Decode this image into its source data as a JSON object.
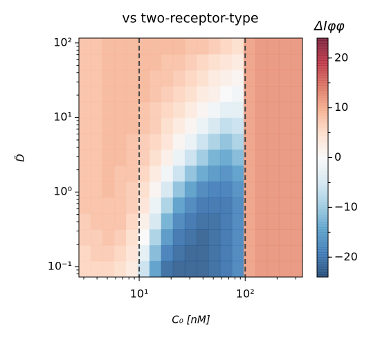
{
  "chart_data": {
    "type": "heatmap",
    "title": "vs two-receptor-type",
    "xlabel": "C₀ [nM]",
    "ylabel": "D̃",
    "xscale": "log",
    "yscale": "log",
    "xlim": [
      2.7,
      347
    ],
    "ylim": [
      0.0724,
      116
    ],
    "xticks": [
      {
        "value": 10,
        "label": "10¹"
      },
      {
        "value": 100,
        "label": "10²"
      }
    ],
    "yticks": [
      {
        "value": 0.1,
        "label": "10⁻¹"
      },
      {
        "value": 1,
        "label": "10⁰"
      },
      {
        "value": 10,
        "label": "10¹"
      },
      {
        "value": 100,
        "label": "10²"
      }
    ],
    "x_edges": [
      2.7,
      3.48,
      4.5,
      5.81,
      7.5,
      9.68,
      12.5,
      16.1,
      20.8,
      26.9,
      34.8,
      44.9,
      57.9,
      74.8,
      96.6,
      125,
      161,
      208,
      269,
      347
    ],
    "y_edges": [
      0.0724,
      0.119,
      0.194,
      0.317,
      0.519,
      0.849,
      1.39,
      2.27,
      3.72,
      6.07,
      9.93,
      16.3,
      26.5,
      43.5,
      71.1,
      116
    ],
    "z": [
      [
        6,
        6,
        6,
        5,
        3,
        -6,
        -15,
        -21,
        -22,
        -22,
        -22,
        -21,
        -20,
        -18,
        11,
        12,
        12,
        12,
        12
      ],
      [
        6,
        7,
        7,
        6,
        4,
        -3,
        -12,
        -19,
        -21,
        -22,
        -22,
        -21,
        -20,
        -18,
        11,
        12,
        12,
        12,
        12
      ],
      [
        7,
        7,
        8,
        7,
        5,
        0,
        -9,
        -16,
        -20,
        -21,
        -22,
        -21,
        -20,
        -18,
        11,
        12,
        12,
        12,
        12
      ],
      [
        7,
        8,
        8,
        8,
        6,
        2,
        -5,
        -13,
        -18,
        -20,
        -21,
        -21,
        -20,
        -18,
        11,
        12,
        12,
        12,
        12
      ],
      [
        8,
        8,
        8,
        8,
        7,
        4,
        -2,
        -9,
        -15,
        -18,
        -20,
        -20,
        -20,
        -18,
        11,
        12,
        12,
        12,
        12
      ],
      [
        8,
        8,
        9,
        8,
        7,
        5,
        1,
        -5,
        -11,
        -15,
        -18,
        -19,
        -19,
        -17,
        11,
        12,
        12,
        12,
        12
      ],
      [
        8,
        8,
        9,
        8,
        8,
        6,
        3,
        -1,
        -6,
        -11,
        -14,
        -16,
        -17,
        -15,
        11,
        12,
        12,
        12,
        12
      ],
      [
        8,
        8,
        9,
        9,
        8,
        7,
        5,
        2,
        -2,
        -6,
        -10,
        -13,
        -14,
        -12,
        11,
        12,
        12,
        12,
        12
      ],
      [
        8,
        8,
        9,
        9,
        8,
        7,
        6,
        4,
        1,
        -2,
        -6,
        -9,
        -11,
        -9,
        11,
        12,
        12,
        12,
        12
      ],
      [
        8,
        8,
        9,
        9,
        9,
        8,
        7,
        5,
        3,
        1,
        -2,
        -5,
        -7,
        -6,
        11,
        12,
        12,
        12,
        12
      ],
      [
        8,
        8,
        9,
        9,
        9,
        8,
        7,
        6,
        5,
        3,
        1,
        -1,
        -3,
        -3,
        11,
        12,
        12,
        12,
        12
      ],
      [
        8,
        8,
        9,
        9,
        9,
        9,
        8,
        7,
        6,
        5,
        3,
        2,
        0,
        -1,
        11,
        12,
        12,
        12,
        12
      ],
      [
        8,
        8,
        9,
        9,
        9,
        9,
        8,
        8,
        7,
        6,
        5,
        3,
        2,
        1,
        11,
        12,
        12,
        12,
        12
      ],
      [
        8,
        8,
        9,
        9,
        9,
        9,
        9,
        8,
        8,
        7,
        6,
        5,
        4,
        3,
        11,
        12,
        12,
        12,
        12
      ],
      [
        8,
        8,
        9,
        9,
        9,
        9,
        9,
        9,
        9,
        8,
        8,
        7,
        6,
        5,
        11,
        12,
        12,
        12,
        12
      ]
    ],
    "vlines": [
      10,
      100
    ],
    "colormap_colors": [
      "#053061",
      "#2166ac",
      "#4393c3",
      "#92c5de",
      "#d1e5f0",
      "#f7f7f7",
      "#fddbc7",
      "#f4a582",
      "#d6604d",
      "#b2182b",
      "#67001f"
    ],
    "colorbar": {
      "label": "ΔIφφ",
      "lim": [
        -24,
        24
      ],
      "ticks": [
        {
          "value": -20,
          "label": "−20"
        },
        {
          "value": -10,
          "label": "−10"
        },
        0,
        10,
        20
      ]
    }
  }
}
